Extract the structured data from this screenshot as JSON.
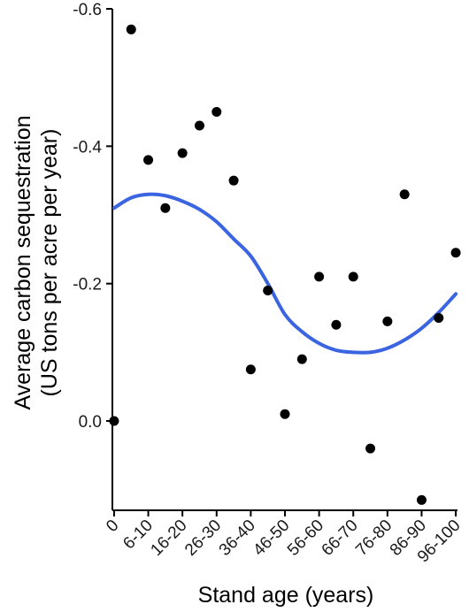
{
  "chart_data": {
    "type": "scatter",
    "xlabel": "Stand age (years)",
    "ylabel_line1": "Average carbon sequestration",
    "ylabel_line2": "(US tons per acre per year)",
    "y_ticks": [
      "-0.6",
      "-0.4",
      "-0.2",
      "0.0"
    ],
    "y_tick_values": [
      -0.6,
      -0.4,
      -0.2,
      0.0
    ],
    "y_reversed": true,
    "ylim": [
      -0.6,
      0.13
    ],
    "xlim": [
      -0.1,
      20.1
    ],
    "x_ticks": [
      "0",
      "6-10",
      "16-20",
      "26-30",
      "36-40",
      "46-50",
      "56-60",
      "66-70",
      "76-80",
      "86-90",
      "96-100"
    ],
    "x_tick_positions": [
      0,
      2,
      4,
      6,
      8,
      10,
      12,
      14,
      16,
      18,
      20
    ],
    "points": [
      {
        "x": 0,
        "y": 0.0
      },
      {
        "x": 1,
        "y": -0.57
      },
      {
        "x": 2,
        "y": -0.38
      },
      {
        "x": 3,
        "y": -0.31
      },
      {
        "x": 4,
        "y": -0.39
      },
      {
        "x": 5,
        "y": -0.43
      },
      {
        "x": 6,
        "y": -0.45
      },
      {
        "x": 7,
        "y": -0.35
      },
      {
        "x": 8,
        "y": -0.075
      },
      {
        "x": 9,
        "y": -0.19
      },
      {
        "x": 10,
        "y": -0.01
      },
      {
        "x": 11,
        "y": -0.09
      },
      {
        "x": 12,
        "y": -0.21
      },
      {
        "x": 13,
        "y": -0.14
      },
      {
        "x": 14,
        "y": -0.21
      },
      {
        "x": 15,
        "y": 0.04
      },
      {
        "x": 16,
        "y": -0.145
      },
      {
        "x": 17,
        "y": -0.33
      },
      {
        "x": 18,
        "y": 0.115
      },
      {
        "x": 19,
        "y": -0.15
      },
      {
        "x": 20,
        "y": -0.245
      }
    ],
    "trend": {
      "color": "#3b64e0",
      "x": [
        0,
        1,
        2,
        3,
        4,
        5,
        6,
        7,
        8,
        9,
        10,
        11,
        12,
        13,
        14,
        15,
        16,
        17,
        18,
        19,
        20
      ],
      "y": [
        -0.31,
        -0.325,
        -0.33,
        -0.328,
        -0.32,
        -0.308,
        -0.29,
        -0.265,
        -0.24,
        -0.2,
        -0.155,
        -0.13,
        -0.113,
        -0.103,
        -0.1,
        -0.1,
        -0.106,
        -0.118,
        -0.135,
        -0.158,
        -0.185
      ]
    },
    "grid": false,
    "legend": "none"
  }
}
